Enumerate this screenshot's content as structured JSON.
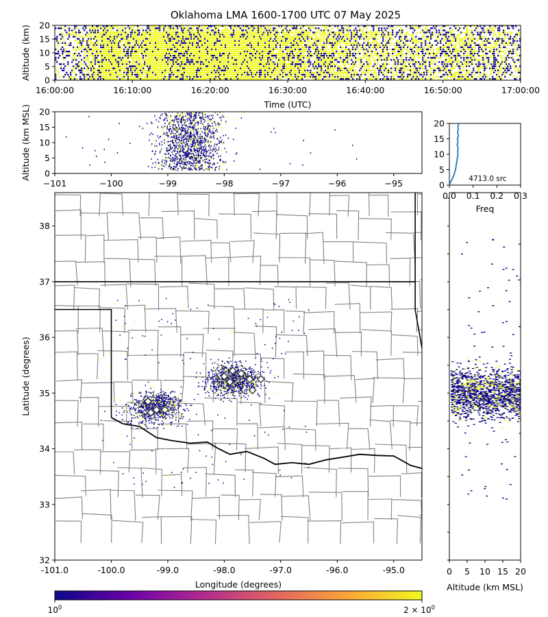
{
  "title": "Oklahoma LMA 1600-1700 UTC 07 May 2025",
  "colors": {
    "low": "#0d0887",
    "high": "#f0f921",
    "county": "#808080",
    "state": "#000000",
    "histline": "#1f77b4"
  },
  "colorbar": {
    "min_label": "10",
    "min_exp": "0",
    "max_label": "2 × 10",
    "max_exp": "0",
    "stops": [
      "#0d0887",
      "#6a00a8",
      "#b12a90",
      "#e16462",
      "#fca636",
      "#f0f921"
    ]
  },
  "chart_data": [
    {
      "id": "time-height",
      "type": "heatmap",
      "xlabel": "Time (UTC)",
      "ylabel": "Altitude (km)",
      "xticks": [
        "16:00:00",
        "16:10:00",
        "16:20:00",
        "16:30:00",
        "16:40:00",
        "16:50:00",
        "17:00:00"
      ],
      "xlim_minutes": [
        0,
        60
      ],
      "ylim": [
        0,
        20
      ],
      "yticks": [
        0,
        5,
        10,
        15,
        20
      ],
      "yellow_density": [
        0.15,
        0.25,
        0.55,
        0.85,
        0.6,
        0.7,
        0.9,
        0.75,
        0.8,
        0.85,
        0.8,
        0.9,
        0.85,
        0.8,
        0.6,
        0.7,
        0.5,
        0.6,
        0.5,
        0.4,
        0.45,
        0.35,
        0.3,
        0.35,
        0.3,
        0.5,
        0.45,
        0.35,
        0.3,
        0.2
      ]
    },
    {
      "id": "lon-height",
      "type": "scatter",
      "ylabel": "Altitude (km MSL)",
      "xlim": [
        -101,
        -94.5
      ],
      "xticks": [
        -101,
        -100,
        -99,
        -98,
        -97,
        -96,
        -95
      ],
      "ylim": [
        0,
        20
      ],
      "yticks": [
        0,
        5,
        10,
        15,
        20
      ]
    },
    {
      "id": "altitude-histogram",
      "type": "line",
      "xlabel": "Freq",
      "xlim": [
        0,
        0.3
      ],
      "xticks": [
        "0.0",
        "0.1",
        "0.2",
        "0.3"
      ],
      "ylim": [
        0,
        20
      ],
      "yticks": [
        0,
        5,
        10,
        15,
        20
      ],
      "annotation": "4713.0 src",
      "x": [
        0.0,
        0.005,
        0.012,
        0.018,
        0.022,
        0.026,
        0.028,
        0.03,
        0.032,
        0.034,
        0.036,
        0.035,
        0.037,
        0.033,
        0.036,
        0.034,
        0.038,
        0.035,
        0.037,
        0.036,
        0.04
      ],
      "y": [
        0,
        1,
        2,
        3,
        4,
        5,
        6,
        7,
        8,
        9,
        10,
        11,
        12,
        13,
        14,
        15,
        16,
        17,
        18,
        19,
        20
      ]
    },
    {
      "id": "plan-view",
      "type": "scatter",
      "xlabel": "Longitude (degrees)",
      "ylabel": "Latitude (degrees)",
      "xlim": [
        -101,
        -94.5
      ],
      "xtick_labels": [
        "-101.0",
        "-100.0",
        "-99.0",
        "-98.0",
        "-97.0",
        "-96.0",
        "-95.0"
      ],
      "xtick_values": [
        -101,
        -100,
        -99,
        -98,
        -97,
        -96,
        -95
      ],
      "ylim": [
        32,
        38.6
      ],
      "yticks": [
        32,
        33,
        34,
        35,
        36,
        37,
        38
      ],
      "clusters": [
        {
          "lon": -99.2,
          "lat": 34.75
        },
        {
          "lon": -97.85,
          "lat": 35.25
        }
      ],
      "stations": [
        {
          "lon": -99.35,
          "lat": 34.85
        },
        {
          "lon": -99.2,
          "lat": 34.7
        },
        {
          "lon": -99.05,
          "lat": 34.7
        },
        {
          "lon": -99.3,
          "lat": 34.65
        },
        {
          "lon": -98.0,
          "lat": 35.3
        },
        {
          "lon": -97.85,
          "lat": 35.4
        },
        {
          "lon": -97.7,
          "lat": 35.35
        },
        {
          "lon": -97.55,
          "lat": 35.25
        },
        {
          "lon": -97.35,
          "lat": 35.25
        },
        {
          "lon": -97.5,
          "lat": 35.05
        },
        {
          "lon": -97.9,
          "lat": 35.2
        }
      ]
    },
    {
      "id": "height-lat",
      "type": "scatter",
      "xlabel": "Altitude (km MSL)",
      "xlim": [
        0,
        20
      ],
      "xticks": [
        0,
        5,
        10,
        15,
        20
      ],
      "ylim": [
        32,
        38.6
      ]
    }
  ]
}
